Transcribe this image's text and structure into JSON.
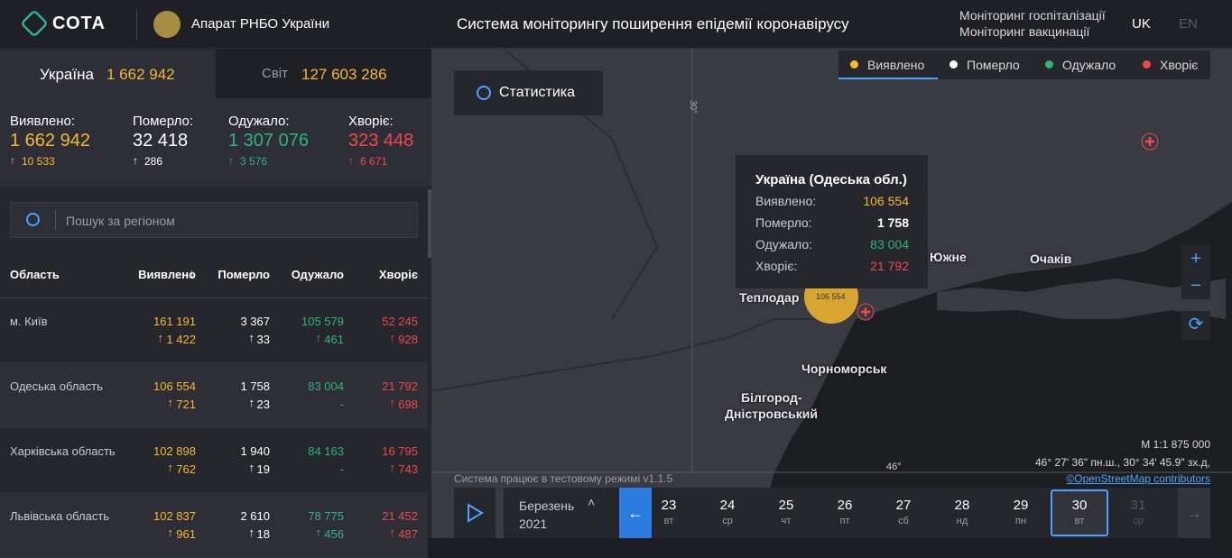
{
  "header": {
    "logo": "СОТА",
    "org": "Апарат РНБО України",
    "title": "Система моніторингу поширення епідемії коронавірусу",
    "links": [
      "Моніторинг госпіталізації",
      "Моніторинг вакцинації"
    ],
    "langs": [
      "UK",
      "EN"
    ]
  },
  "tabs": [
    {
      "label": "Україна",
      "value": "1 662 942"
    },
    {
      "label": "Світ",
      "value": "127 603 286"
    }
  ],
  "summary": [
    {
      "label": "Виявлено:",
      "value": "1 662 942",
      "delta": "10 533"
    },
    {
      "label": "Померло:",
      "value": "32 418",
      "delta": "286"
    },
    {
      "label": "Одужало:",
      "value": "1 307 076",
      "delta": "3 576"
    },
    {
      "label": "Хворіє:",
      "value": "323 448",
      "delta": "6 671"
    }
  ],
  "search": {
    "placeholder": "Пошук за регіоном"
  },
  "table": {
    "columns": [
      "Область",
      "Виявлено",
      "Померло",
      "Одужало",
      "Хворіє"
    ],
    "rows": [
      {
        "name": "м. Київ",
        "cells": [
          [
            "161 191",
            "1 422"
          ],
          [
            "3 367",
            "33"
          ],
          [
            "105 579",
            "461"
          ],
          [
            "52 245",
            "928"
          ]
        ]
      },
      {
        "name": "Одеська область",
        "cells": [
          [
            "106 554",
            "721"
          ],
          [
            "1 758",
            "23"
          ],
          [
            "83 004",
            "-"
          ],
          [
            "21 792",
            "698"
          ]
        ]
      },
      {
        "name": "Харківська область",
        "cells": [
          [
            "102 898",
            "762"
          ],
          [
            "1 940",
            "19"
          ],
          [
            "84 163",
            "-"
          ],
          [
            "16 795",
            "743"
          ]
        ]
      },
      {
        "name": "Львівська область",
        "cells": [
          [
            "102 837",
            "961"
          ],
          [
            "2 610",
            "18"
          ],
          [
            "78 775",
            "456"
          ],
          [
            "21 452",
            "487"
          ]
        ]
      }
    ]
  },
  "map": {
    "button": "Статистика",
    "legend": [
      "Виявлено",
      "Померло",
      "Одужало",
      "Хворіє"
    ],
    "tooltip": {
      "title": "Україна (Одеська обл.)",
      "rows": [
        [
          "Виявлено:",
          "106 554"
        ],
        [
          "Померло:",
          "1 758"
        ],
        [
          "Одужало:",
          "83 004"
        ],
        [
          "Хворіє:",
          "21 792"
        ]
      ]
    },
    "bubble": "106 554",
    "places": [
      "Южне",
      "Очаків",
      "Теплодар",
      "Чорноморськ",
      "Білгород-",
      "Дністровський"
    ],
    "grid": [
      "30°",
      "46°"
    ],
    "scale": "М 1:1 875 000",
    "coords": "46° 27' 36\" пн.ш., 30° 34' 45.9\" зх.д,",
    "attribution": "©OpenStreetMap contributors",
    "status": "Система працює в тестовому режимі v1.1.5"
  },
  "timeline": {
    "month": "Березень",
    "year": "2021",
    "days": [
      {
        "n": "23",
        "d": "вт"
      },
      {
        "n": "24",
        "d": "ср"
      },
      {
        "n": "25",
        "d": "чт"
      },
      {
        "n": "26",
        "d": "пт"
      },
      {
        "n": "27",
        "d": "сб"
      },
      {
        "n": "28",
        "d": "нд"
      },
      {
        "n": "29",
        "d": "пн"
      },
      {
        "n": "30",
        "d": "вт"
      },
      {
        "n": "31",
        "d": "ср"
      }
    ]
  }
}
